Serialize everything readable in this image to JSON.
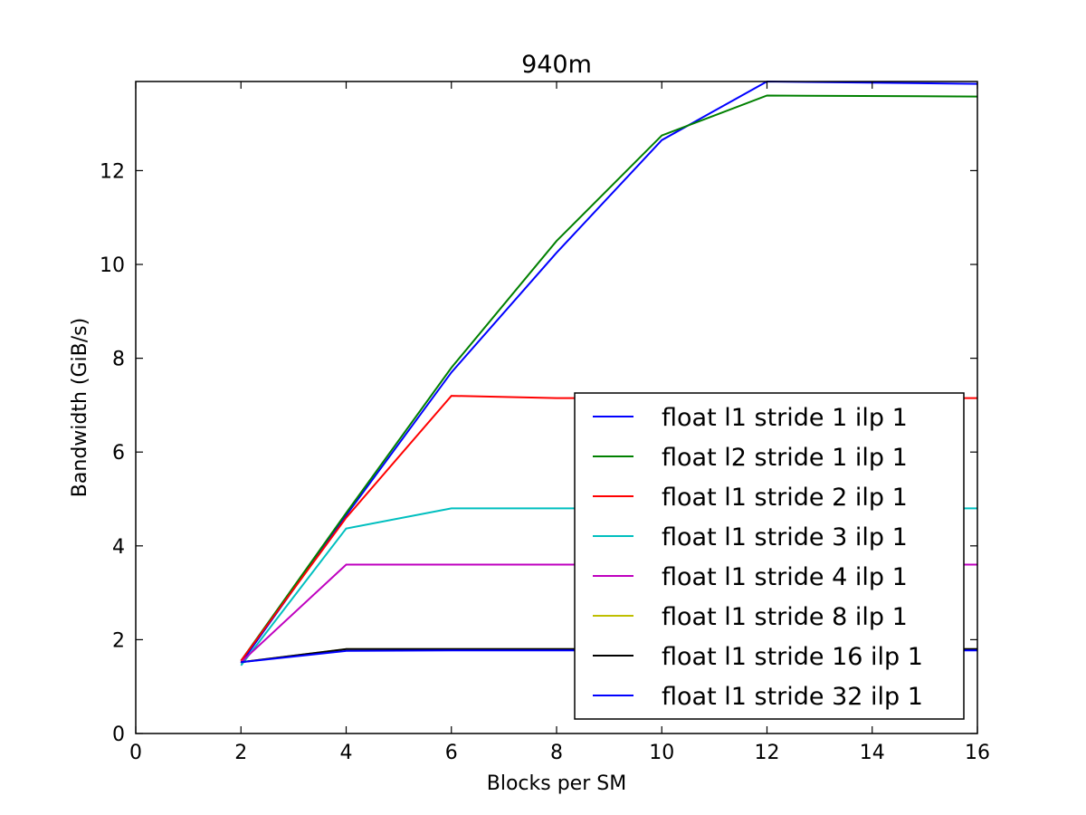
{
  "chart_data": {
    "type": "line",
    "title": "940m",
    "xlabel": "Blocks per SM",
    "ylabel": "Bandwidth (GiB/s)",
    "xlim": [
      0,
      16
    ],
    "ylim": [
      0,
      13.9
    ],
    "xticks": [
      0,
      2,
      4,
      6,
      8,
      10,
      12,
      14,
      16
    ],
    "yticks": [
      0,
      2,
      4,
      6,
      8,
      10,
      12
    ],
    "grid": false,
    "legend_position": "lower-right",
    "x": [
      2,
      4,
      6,
      8,
      10,
      12,
      16
    ],
    "series": [
      {
        "name": "float l1 stride 1 ilp 1",
        "color": "#0000ff",
        "values": [
          1.5,
          4.65,
          7.7,
          10.25,
          12.65,
          13.9,
          13.85
        ]
      },
      {
        "name": "float l2 stride 1 ilp 1",
        "color": "#008000",
        "values": [
          1.55,
          4.7,
          7.8,
          10.5,
          12.75,
          13.6,
          13.58
        ]
      },
      {
        "name": "float l1 stride 2 ilp 1",
        "color": "#ff0000",
        "values": [
          1.55,
          4.6,
          7.2,
          7.15,
          7.15,
          7.15,
          7.15
        ]
      },
      {
        "name": "float l1 stride 3 ilp 1",
        "color": "#00bfbf",
        "values": [
          1.45,
          4.37,
          4.8,
          4.8,
          4.8,
          4.8,
          4.8
        ]
      },
      {
        "name": "float l1 stride 4 ilp 1",
        "color": "#bf00bf",
        "values": [
          1.52,
          3.6,
          3.6,
          3.6,
          3.6,
          3.6,
          3.6
        ]
      },
      {
        "name": "float l1 stride 8 ilp 1",
        "color": "#bfbf00",
        "values": [
          1.52,
          1.8,
          1.8,
          1.8,
          1.8,
          1.8,
          1.8
        ]
      },
      {
        "name": "float l1 stride 16 ilp 1",
        "color": "#000000",
        "values": [
          1.52,
          1.8,
          1.8,
          1.8,
          1.8,
          1.8,
          1.8
        ]
      },
      {
        "name": "float l1 stride 32 ilp 1",
        "color": "#0000ff",
        "values": [
          1.52,
          1.76,
          1.77,
          1.77,
          1.77,
          1.77,
          1.77
        ]
      }
    ]
  }
}
